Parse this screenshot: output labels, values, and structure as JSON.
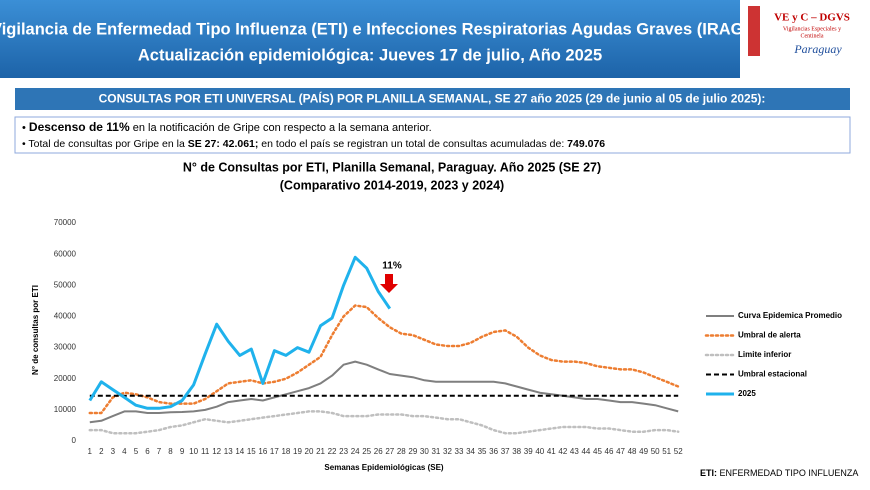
{
  "header": {
    "title": "Vigilancia de Enfermedad Tipo Influenza (ETI) e Infecciones Respiratorias Agudas Graves (IRAG)",
    "subtitle": "Actualización epidemiológica: Jueves 17 de julio, Año 2025",
    "logo": {
      "name": "VE y C – DGVS",
      "line1": "Vigilancias Especiales y",
      "line2": "Centinela",
      "country": "Paraguay"
    }
  },
  "section_title": "CONSULTAS POR ETI UNIVERSAL (PAÍS) POR PLANILLA SEMANAL, SE 27 año 2025 (29 de junio al 05 de julio 2025):",
  "bullets": [
    [
      "Descenso de 11%",
      " en la notificación de Gripe con respecto a la semana anterior."
    ],
    [
      "Total de consultas por Gripe en la ",
      "SE 27: 42.061;",
      " en todo el país se registran un total de consultas acumuladas de: ",
      "749.076"
    ]
  ],
  "footnote": [
    "ETI:",
    " ENFERMEDAD TIPO INFLUENZA"
  ],
  "chart_data": {
    "type": "line",
    "title": "N° de Consultas por ETI, Planilla Semanal, Paraguay. Año 2025  (SE 27)",
    "subtitle": "(Comparativo 2014-2019, 2023 y 2024)",
    "x_label": "Semanas Epidemiológicas (SE)",
    "y_label": "N° de consultas por ETI",
    "annotation": "11%",
    "x": [
      1,
      2,
      3,
      4,
      5,
      6,
      7,
      8,
      9,
      10,
      11,
      12,
      13,
      14,
      15,
      16,
      17,
      18,
      19,
      20,
      21,
      22,
      23,
      24,
      25,
      26,
      27,
      28,
      29,
      30,
      31,
      32,
      33,
      34,
      35,
      36,
      37,
      38,
      39,
      40,
      41,
      42,
      43,
      44,
      45,
      46,
      47,
      48,
      49,
      50,
      51,
      52
    ],
    "ylim": [
      0,
      70000
    ],
    "yticks": [
      0,
      10000,
      20000,
      30000,
      40000,
      50000,
      60000,
      70000
    ],
    "legend": "right",
    "series": [
      {
        "name": "Curva Epidemica Promedio",
        "color": "#7f7f7f",
        "style": "solid",
        "values": [
          6000,
          6500,
          8000,
          9500,
          9500,
          9000,
          9000,
          9200,
          9300,
          9500,
          10000,
          11000,
          12500,
          13000,
          13500,
          13000,
          14000,
          15000,
          16000,
          17000,
          18500,
          21000,
          24500,
          25500,
          24500,
          23000,
          21500,
          21000,
          20500,
          19500,
          19000,
          19000,
          19000,
          19000,
          19000,
          19000,
          18500,
          17500,
          16500,
          15500,
          15000,
          14500,
          14000,
          13500,
          13500,
          13000,
          12500,
          12500,
          12000,
          11500,
          10500,
          9500
        ]
      },
      {
        "name": "Umbral de alerta",
        "color": "#ed7d31",
        "style": "dotted",
        "values": [
          9000,
          9000,
          14000,
          15500,
          15000,
          14000,
          12500,
          12000,
          12000,
          12000,
          13500,
          16000,
          18500,
          19000,
          19500,
          18500,
          19000,
          20000,
          22000,
          24500,
          27000,
          34000,
          40000,
          43500,
          43000,
          39500,
          36500,
          34500,
          34000,
          32500,
          31000,
          30500,
          30500,
          31500,
          33500,
          35000,
          35500,
          33500,
          30000,
          27500,
          26000,
          25500,
          25500,
          25000,
          24000,
          23500,
          23000,
          23000,
          22000,
          20500,
          19000,
          17500
        ]
      },
      {
        "name": "Limite inferior",
        "color": "#bfbfbf",
        "style": "dotted",
        "values": [
          3500,
          3500,
          2500,
          2500,
          2500,
          3000,
          3500,
          4500,
          5000,
          6000,
          7000,
          6500,
          6000,
          6500,
          7000,
          7500,
          8000,
          8500,
          9000,
          9500,
          9500,
          9000,
          8000,
          8000,
          8000,
          8500,
          8500,
          8500,
          8000,
          8000,
          7500,
          7000,
          7000,
          6000,
          5000,
          3500,
          2500,
          2500,
          3000,
          3500,
          4000,
          4500,
          4500,
          4500,
          4000,
          4000,
          3500,
          3000,
          3000,
          3500,
          3500,
          3000
        ]
      },
      {
        "name": "Umbral estacional",
        "color": "#000000",
        "style": "dashed",
        "values": [
          14500,
          14500,
          14500,
          14500,
          14500,
          14500,
          14500,
          14500,
          14500,
          14500,
          14500,
          14500,
          14500,
          14500,
          14500,
          14500,
          14500,
          14500,
          14500,
          14500,
          14500,
          14500,
          14500,
          14500,
          14500,
          14500,
          14500,
          14500,
          14500,
          14500,
          14500,
          14500,
          14500,
          14500,
          14500,
          14500,
          14500,
          14500,
          14500,
          14500,
          14500,
          14500,
          14500,
          14500,
          14500,
          14500,
          14500,
          14500,
          14500,
          14500,
          14500,
          14500
        ]
      },
      {
        "name": "2025",
        "color": "#1fb2ec",
        "style": "solid",
        "values": [
          13000,
          19000,
          16500,
          14000,
          11500,
          10500,
          10500,
          11000,
          13000,
          18000,
          28000,
          37500,
          32000,
          27500,
          29500,
          18500,
          29000,
          27500,
          30000,
          28500,
          37000,
          39500,
          50000,
          59000,
          55500,
          48000,
          42500,
          null,
          null,
          null,
          null,
          null,
          null,
          null,
          null,
          null,
          null,
          null,
          null,
          null,
          null,
          null,
          null,
          null,
          null,
          null,
          null,
          null,
          null,
          null,
          null,
          null
        ]
      }
    ]
  }
}
